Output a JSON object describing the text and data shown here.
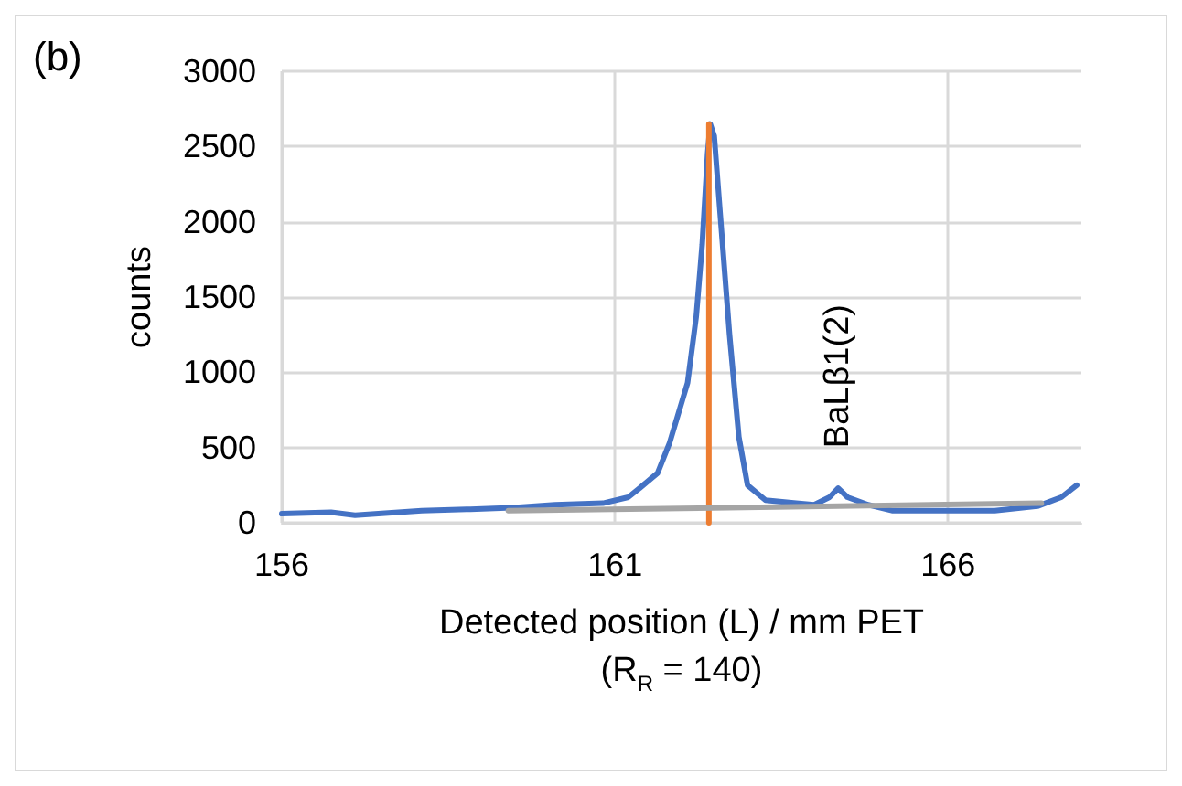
{
  "chart_data": {
    "type": "line",
    "title": "(b)",
    "xlabel": "Detected position (L) / mm PET\n(R$_{R}$ = 140)",
    "ylabel": "counts",
    "xlim": [
      156,
      168
    ],
    "xticks": [
      156,
      161,
      166
    ],
    "ylim": [
      0,
      3000
    ],
    "yticks": [
      0,
      500,
      1000,
      1500,
      2000,
      2500,
      3000
    ],
    "grid": true,
    "marker": "none",
    "line_style": "solid",
    "annotations": [
      {
        "text": "BaLβ1(2)",
        "x": 164.35,
        "y": 230
      }
    ],
    "series": [
      {
        "color": "#4472c4",
        "x": [
          156,
          156.74,
          157.1,
          158.1,
          158.83,
          159.46,
          160.1,
          160.82,
          161.2,
          161.37,
          161.64,
          161.82,
          162.09,
          162.22,
          162.31,
          162.39,
          162.43,
          162.49,
          162.58,
          162.72,
          162.86,
          162.99,
          163.26,
          163.72,
          163.99,
          164.22,
          164.35,
          164.49,
          164.8,
          165.17,
          165.8,
          166.7,
          167.34,
          167.7,
          167.93
        ],
        "values": [
          60,
          70,
          50,
          80,
          90,
          100,
          120,
          130,
          170,
          230,
          330,
          530,
          930,
          1370,
          1850,
          2450,
          2650,
          2570,
          2050,
          1250,
          570,
          250,
          150,
          130,
          120,
          170,
          230,
          170,
          120,
          80,
          80,
          80,
          110,
          170,
          250
        ]
      },
      {
        "color": "#ed7d31",
        "x": [
          162.41,
          162.41
        ],
        "values": [
          0,
          2650
        ]
      },
      {
        "color": "#a5a5a5",
        "x": [
          159.4,
          167.4
        ],
        "values": [
          80,
          130
        ]
      }
    ]
  }
}
